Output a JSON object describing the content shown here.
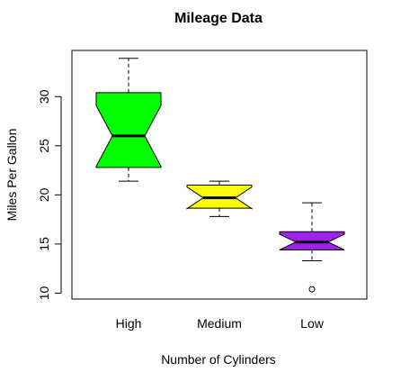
{
  "chart_data": {
    "type": "boxplot",
    "title": "Mileage Data",
    "xlabel": "Number of Cylinders",
    "ylabel": "Miles Per Gallon",
    "ylim": [
      9.4,
      34.7
    ],
    "yticks": [
      10,
      15,
      20,
      25,
      30
    ],
    "notched": true,
    "categories": [
      "High",
      "Medium",
      "Low"
    ],
    "boxes": [
      {
        "category": "High",
        "color": "#00ff00",
        "min": 21.4,
        "q1": 22.8,
        "median": 26.0,
        "q3": 30.4,
        "max": 33.9,
        "notch_low": 22.9,
        "notch_high": 29.1,
        "outliers": []
      },
      {
        "category": "Medium",
        "color": "#ffff00",
        "min": 17.8,
        "q1": 18.65,
        "median": 19.7,
        "q3": 21.0,
        "max": 21.4,
        "notch_low": 18.6,
        "notch_high": 20.8,
        "outliers": []
      },
      {
        "category": "Low",
        "color": "#a020f0",
        "min": 13.3,
        "q1": 14.4,
        "median": 15.2,
        "q3": 16.25,
        "max": 19.2,
        "notch_low": 14.4,
        "notch_high": 16.0,
        "outliers": [
          10.4
        ]
      }
    ]
  }
}
